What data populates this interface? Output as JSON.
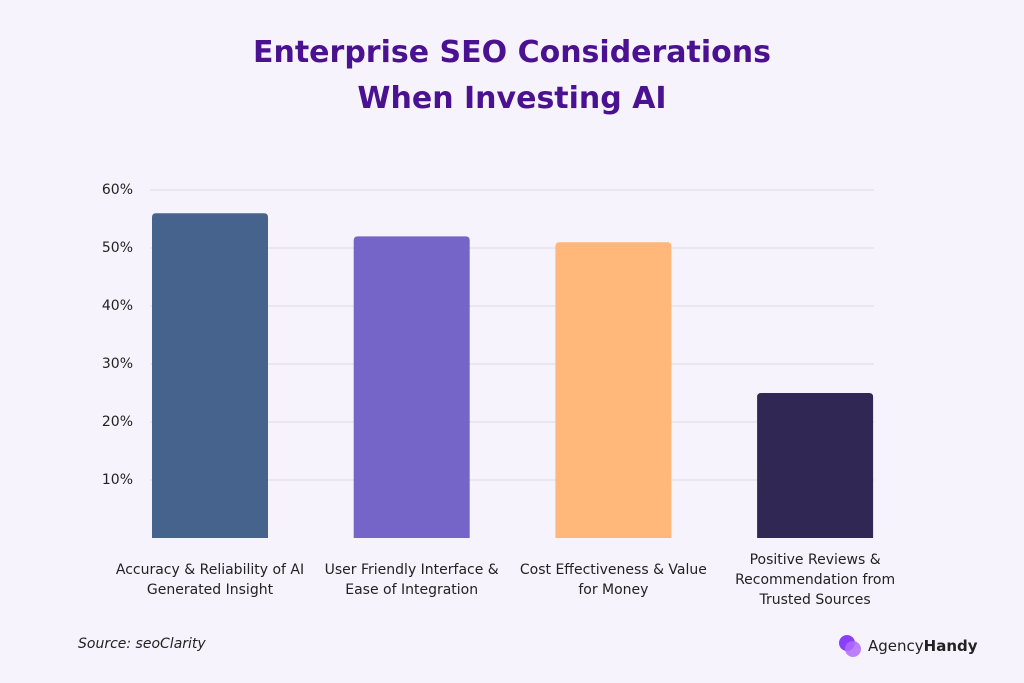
{
  "chart_data": {
    "type": "bar",
    "title": "Enterprise SEO Considerations When Investing AI",
    "categories": [
      "Accuracy & Reliability of AI Generated Insight",
      "User Friendly Interface & Ease of Integration",
      "Cost Effectiveness & Value for Money",
      "Positive Reviews & Recommendation from Trusted Sources"
    ],
    "values": [
      56,
      52,
      51,
      25
    ],
    "colors": [
      "#46638e",
      "#7565c9",
      "#ffb77a",
      "#302755"
    ],
    "ylim": [
      0,
      60
    ],
    "yticks": [
      {
        "value": 10,
        "label": "10%"
      },
      {
        "value": 20,
        "label": "20%"
      },
      {
        "value": 30,
        "label": "30%"
      },
      {
        "value": 40,
        "label": "40%"
      },
      {
        "value": 50,
        "label": "50%"
      },
      {
        "value": 60,
        "label": "60%"
      }
    ],
    "grid": true
  },
  "footer": {
    "source": "Source: seoClarity",
    "logo": {
      "regular": "Agency",
      "bold": "Handy"
    }
  }
}
